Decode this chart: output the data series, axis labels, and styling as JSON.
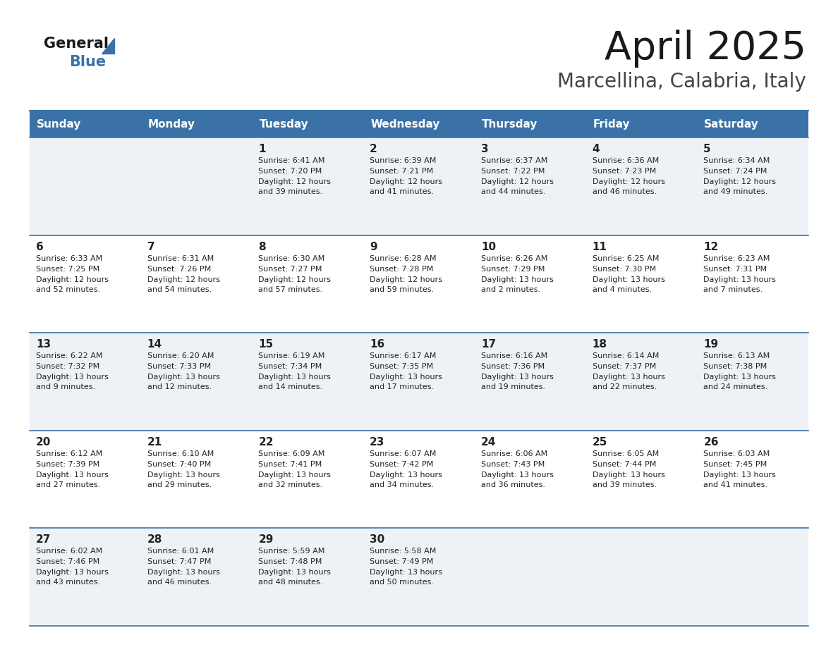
{
  "title": "April 2025",
  "subtitle": "Marcellina, Calabria, Italy",
  "header_bg_color": "#3a72a8",
  "header_text_color": "#ffffff",
  "days_of_week": [
    "Sunday",
    "Monday",
    "Tuesday",
    "Wednesday",
    "Thursday",
    "Friday",
    "Saturday"
  ],
  "row_bg_even": "#eef2f7",
  "row_bg_odd": "#ffffff",
  "border_color": "#3a72a8",
  "text_color": "#222222",
  "calendar_data": [
    [
      {
        "day": "",
        "sunrise": "",
        "sunset": "",
        "daylight": ""
      },
      {
        "day": "",
        "sunrise": "",
        "sunset": "",
        "daylight": ""
      },
      {
        "day": "1",
        "sunrise": "6:41 AM",
        "sunset": "7:20 PM",
        "daylight": "12 hours\nand 39 minutes."
      },
      {
        "day": "2",
        "sunrise": "6:39 AM",
        "sunset": "7:21 PM",
        "daylight": "12 hours\nand 41 minutes."
      },
      {
        "day": "3",
        "sunrise": "6:37 AM",
        "sunset": "7:22 PM",
        "daylight": "12 hours\nand 44 minutes."
      },
      {
        "day": "4",
        "sunrise": "6:36 AM",
        "sunset": "7:23 PM",
        "daylight": "12 hours\nand 46 minutes."
      },
      {
        "day": "5",
        "sunrise": "6:34 AM",
        "sunset": "7:24 PM",
        "daylight": "12 hours\nand 49 minutes."
      }
    ],
    [
      {
        "day": "6",
        "sunrise": "6:33 AM",
        "sunset": "7:25 PM",
        "daylight": "12 hours\nand 52 minutes."
      },
      {
        "day": "7",
        "sunrise": "6:31 AM",
        "sunset": "7:26 PM",
        "daylight": "12 hours\nand 54 minutes."
      },
      {
        "day": "8",
        "sunrise": "6:30 AM",
        "sunset": "7:27 PM",
        "daylight": "12 hours\nand 57 minutes."
      },
      {
        "day": "9",
        "sunrise": "6:28 AM",
        "sunset": "7:28 PM",
        "daylight": "12 hours\nand 59 minutes."
      },
      {
        "day": "10",
        "sunrise": "6:26 AM",
        "sunset": "7:29 PM",
        "daylight": "13 hours\nand 2 minutes."
      },
      {
        "day": "11",
        "sunrise": "6:25 AM",
        "sunset": "7:30 PM",
        "daylight": "13 hours\nand 4 minutes."
      },
      {
        "day": "12",
        "sunrise": "6:23 AM",
        "sunset": "7:31 PM",
        "daylight": "13 hours\nand 7 minutes."
      }
    ],
    [
      {
        "day": "13",
        "sunrise": "6:22 AM",
        "sunset": "7:32 PM",
        "daylight": "13 hours\nand 9 minutes."
      },
      {
        "day": "14",
        "sunrise": "6:20 AM",
        "sunset": "7:33 PM",
        "daylight": "13 hours\nand 12 minutes."
      },
      {
        "day": "15",
        "sunrise": "6:19 AM",
        "sunset": "7:34 PM",
        "daylight": "13 hours\nand 14 minutes."
      },
      {
        "day": "16",
        "sunrise": "6:17 AM",
        "sunset": "7:35 PM",
        "daylight": "13 hours\nand 17 minutes."
      },
      {
        "day": "17",
        "sunrise": "6:16 AM",
        "sunset": "7:36 PM",
        "daylight": "13 hours\nand 19 minutes."
      },
      {
        "day": "18",
        "sunrise": "6:14 AM",
        "sunset": "7:37 PM",
        "daylight": "13 hours\nand 22 minutes."
      },
      {
        "day": "19",
        "sunrise": "6:13 AM",
        "sunset": "7:38 PM",
        "daylight": "13 hours\nand 24 minutes."
      }
    ],
    [
      {
        "day": "20",
        "sunrise": "6:12 AM",
        "sunset": "7:39 PM",
        "daylight": "13 hours\nand 27 minutes."
      },
      {
        "day": "21",
        "sunrise": "6:10 AM",
        "sunset": "7:40 PM",
        "daylight": "13 hours\nand 29 minutes."
      },
      {
        "day": "22",
        "sunrise": "6:09 AM",
        "sunset": "7:41 PM",
        "daylight": "13 hours\nand 32 minutes."
      },
      {
        "day": "23",
        "sunrise": "6:07 AM",
        "sunset": "7:42 PM",
        "daylight": "13 hours\nand 34 minutes."
      },
      {
        "day": "24",
        "sunrise": "6:06 AM",
        "sunset": "7:43 PM",
        "daylight": "13 hours\nand 36 minutes."
      },
      {
        "day": "25",
        "sunrise": "6:05 AM",
        "sunset": "7:44 PM",
        "daylight": "13 hours\nand 39 minutes."
      },
      {
        "day": "26",
        "sunrise": "6:03 AM",
        "sunset": "7:45 PM",
        "daylight": "13 hours\nand 41 minutes."
      }
    ],
    [
      {
        "day": "27",
        "sunrise": "6:02 AM",
        "sunset": "7:46 PM",
        "daylight": "13 hours\nand 43 minutes."
      },
      {
        "day": "28",
        "sunrise": "6:01 AM",
        "sunset": "7:47 PM",
        "daylight": "13 hours\nand 46 minutes."
      },
      {
        "day": "29",
        "sunrise": "5:59 AM",
        "sunset": "7:48 PM",
        "daylight": "13 hours\nand 48 minutes."
      },
      {
        "day": "30",
        "sunrise": "5:58 AM",
        "sunset": "7:49 PM",
        "daylight": "13 hours\nand 50 minutes."
      },
      {
        "day": "",
        "sunrise": "",
        "sunset": "",
        "daylight": ""
      },
      {
        "day": "",
        "sunrise": "",
        "sunset": "",
        "daylight": ""
      },
      {
        "day": "",
        "sunrise": "",
        "sunset": "",
        "daylight": ""
      }
    ]
  ]
}
